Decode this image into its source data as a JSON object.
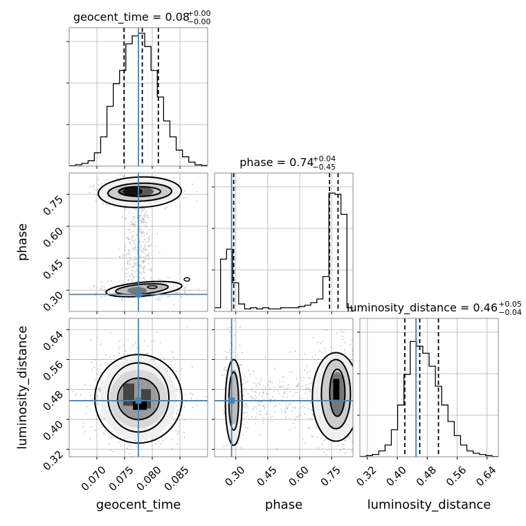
{
  "chart_data": {
    "type": "corner",
    "parameters": [
      "geocent_time",
      "phase",
      "luminosity_distance"
    ],
    "axis_labels": [
      "geocent_time",
      "phase",
      "luminosity_distance"
    ],
    "ranges": [
      [
        0.065,
        0.09
      ],
      [
        0.2,
        0.85
      ],
      [
        0.3,
        0.67
      ]
    ],
    "truths": [
      0.0775,
      0.28,
      0.45
    ],
    "colors": {
      "truth": "#4682b4",
      "hist": "#000000",
      "grid": "#b0b0b0",
      "scatter": "#9a9a9a"
    },
    "grid": true,
    "ticks": {
      "geocent_time": [
        "0.070",
        "0.075",
        "0.080",
        "0.085"
      ],
      "phase": [
        "0.30",
        "0.45",
        "0.60",
        "0.75"
      ],
      "luminosity_distance": [
        "0.32",
        "0.40",
        "0.48",
        "0.56",
        "0.64"
      ]
    },
    "titles": [
      {
        "param": "geocent_time",
        "text": "geocent_time = 0.08",
        "sup": "+0.00",
        "sub": "−0.00"
      },
      {
        "param": "phase",
        "text": "phase = 0.74",
        "sup": "+0.04",
        "sub": "−0.45"
      },
      {
        "param": "luminosity_distance",
        "text": "luminosity_distance = 0.46",
        "sup": "+0.05",
        "sub": "−0.04"
      }
    ],
    "quantiles": {
      "geocent_time": [
        0.0749,
        0.0782,
        0.0811
      ],
      "phase": [
        0.29,
        0.74,
        0.78
      ],
      "luminosity_distance": [
        0.42,
        0.46,
        0.51
      ]
    },
    "histograms": {
      "geocent_time": {
        "x0": 0.065,
        "x1": 0.09,
        "values": [
          0.003,
          0.01,
          0.02,
          0.04,
          0.1,
          0.22,
          0.45,
          0.62,
          0.72,
          0.92,
          0.98,
          1.0,
          0.9,
          0.72,
          0.52,
          0.34,
          0.22,
          0.12,
          0.07,
          0.03,
          0.01,
          0.005
        ]
      },
      "phase": {
        "x0": 0.2,
        "x1": 0.85,
        "values": [
          0.03,
          0.42,
          0.5,
          0.23,
          0.06,
          0.02,
          0.03,
          0.02,
          0.03,
          0.02,
          0.02,
          0.03,
          0.03,
          0.03,
          0.04,
          0.05,
          0.07,
          0.1,
          0.28,
          0.95,
          0.94,
          0.78,
          0.03
        ]
      },
      "luminosity_distance": {
        "x0": 0.3,
        "x1": 0.67,
        "values": [
          0.003,
          0.01,
          0.02,
          0.05,
          0.1,
          0.23,
          0.44,
          0.7,
          0.98,
          0.94,
          0.88,
          0.77,
          0.6,
          0.44,
          0.3,
          0.18,
          0.1,
          0.05,
          0.03,
          0.02,
          0.01,
          0.002
        ]
      }
    }
  }
}
